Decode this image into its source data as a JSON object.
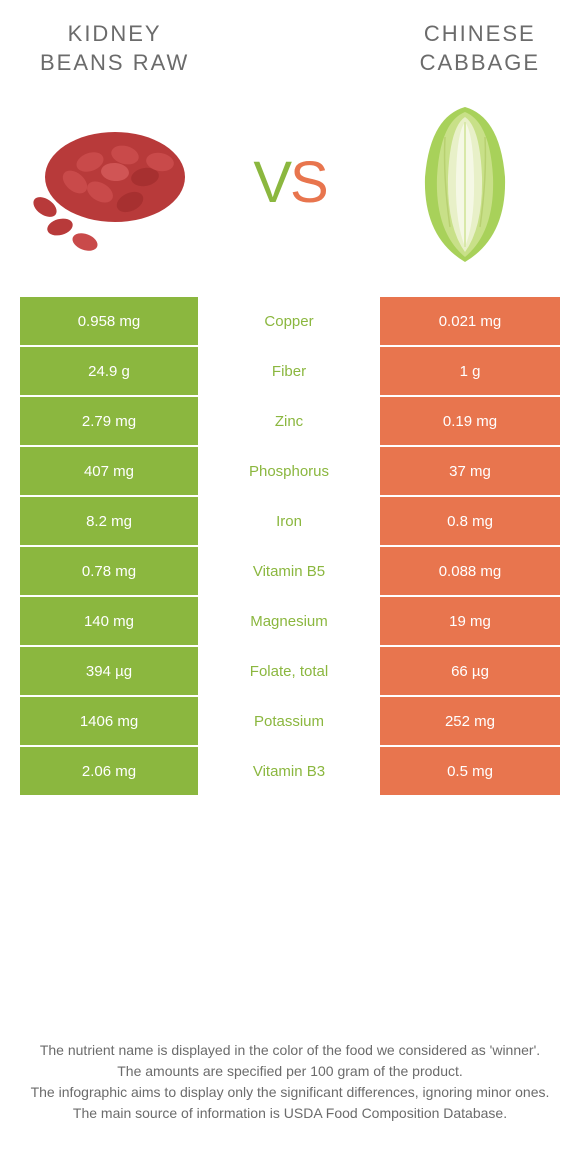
{
  "colors": {
    "green": "#8bb73f",
    "orange": "#e8754e",
    "text": "#6b6b6b",
    "nutrient_green": "#8bb73f",
    "nutrient_orange": "#e8754e"
  },
  "left_food": {
    "title_line1": "KIDNEY",
    "title_line2": "BEANS RAW"
  },
  "right_food": {
    "title_line1": "CHINESE",
    "title_line2": "CABBAGE"
  },
  "vs": {
    "v": "V",
    "s": "S"
  },
  "rows": [
    {
      "left": "0.958 mg",
      "nutrient": "Copper",
      "right": "0.021 mg",
      "winner": "left"
    },
    {
      "left": "24.9 g",
      "nutrient": "Fiber",
      "right": "1 g",
      "winner": "left"
    },
    {
      "left": "2.79 mg",
      "nutrient": "Zinc",
      "right": "0.19 mg",
      "winner": "left"
    },
    {
      "left": "407 mg",
      "nutrient": "Phosphorus",
      "right": "37 mg",
      "winner": "left"
    },
    {
      "left": "8.2 mg",
      "nutrient": "Iron",
      "right": "0.8 mg",
      "winner": "left"
    },
    {
      "left": "0.78 mg",
      "nutrient": "Vitamin B5",
      "right": "0.088 mg",
      "winner": "left"
    },
    {
      "left": "140 mg",
      "nutrient": "Magnesium",
      "right": "19 mg",
      "winner": "left"
    },
    {
      "left": "394 µg",
      "nutrient": "Folate, total",
      "right": "66 µg",
      "winner": "left"
    },
    {
      "left": "1406 mg",
      "nutrient": "Potassium",
      "right": "252 mg",
      "winner": "left"
    },
    {
      "left": "2.06 mg",
      "nutrient": "Vitamin B3",
      "right": "0.5 mg",
      "winner": "left"
    }
  ],
  "footer": {
    "line1": "The nutrient name is displayed in the color of the food we considered as 'winner'.",
    "line2": "The amounts are specified per 100 gram of the product.",
    "line3": "The infographic aims to display only the significant differences, ignoring minor ones.",
    "line4": "The main source of information is USDA Food Composition Database."
  }
}
